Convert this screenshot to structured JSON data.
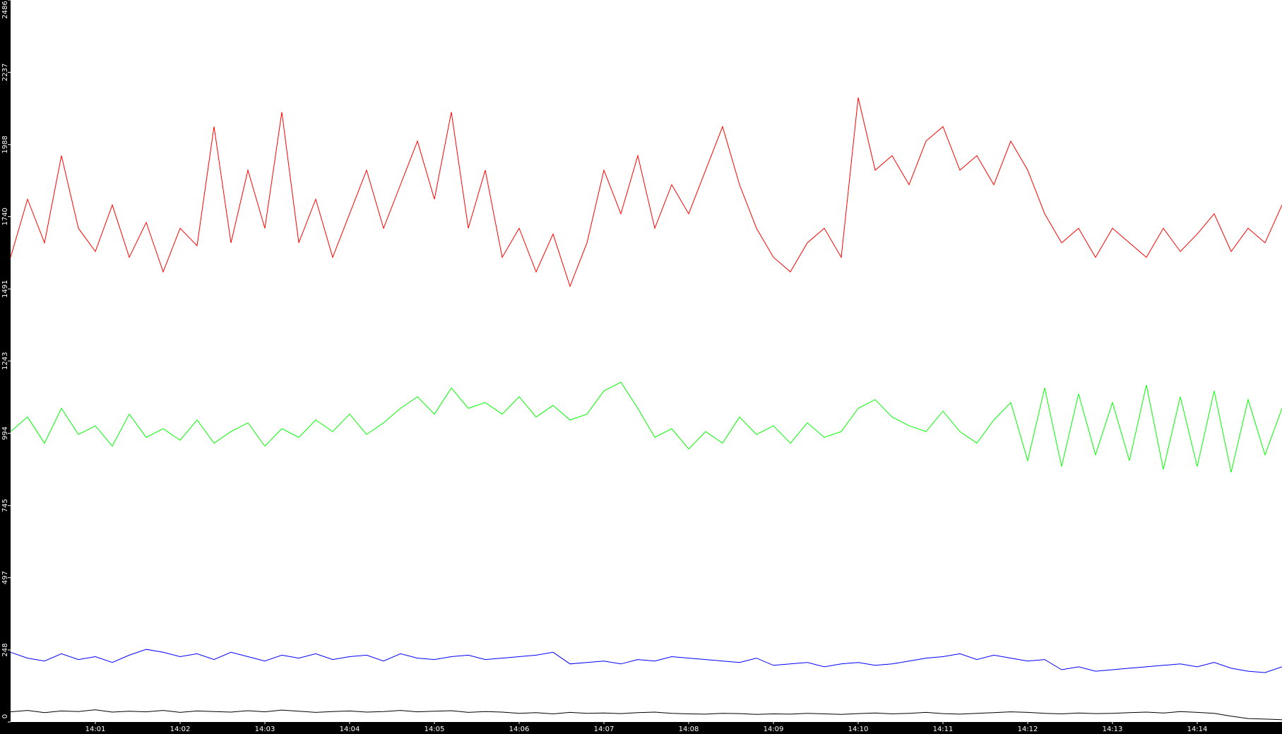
{
  "chart_data": {
    "type": "line",
    "x": [
      0,
      0.2,
      0.4,
      0.6,
      0.8,
      1,
      1.2,
      1.4,
      1.6,
      1.8,
      2,
      2.2,
      2.4,
      2.6,
      2.8,
      3,
      3.2,
      3.4,
      3.6,
      3.8,
      4,
      4.2,
      4.4,
      4.6,
      4.8,
      5,
      5.2,
      5.4,
      5.6,
      5.8,
      6,
      6.2,
      6.4,
      6.6,
      6.8,
      7,
      7.2,
      7.4,
      7.6,
      7.8,
      8,
      8.2,
      8.4,
      8.6,
      8.8,
      9,
      9.2,
      9.4,
      9.6,
      9.8,
      10,
      10.2,
      10.4,
      10.6,
      10.8,
      11,
      11.2,
      11.4,
      11.6,
      11.8,
      12,
      12.2,
      12.4,
      12.6,
      12.8,
      13,
      13.2,
      13.4,
      13.6,
      13.8,
      14,
      14.2,
      14.4,
      14.6,
      14.8,
      15
    ],
    "xlim": [
      0,
      15
    ],
    "xticks": [
      {
        "value": 1,
        "label": "14:01"
      },
      {
        "value": 2,
        "label": "14:02"
      },
      {
        "value": 3,
        "label": "14:03"
      },
      {
        "value": 4,
        "label": "14:04"
      },
      {
        "value": 5,
        "label": "14:05"
      },
      {
        "value": 6,
        "label": "14:06"
      },
      {
        "value": 7,
        "label": "14:07"
      },
      {
        "value": 8,
        "label": "14:08"
      },
      {
        "value": 9,
        "label": "14:09"
      },
      {
        "value": 10,
        "label": "14:10"
      },
      {
        "value": 11,
        "label": "14:11"
      },
      {
        "value": 12,
        "label": "14:12"
      },
      {
        "value": 13,
        "label": "14:13"
      },
      {
        "value": 14,
        "label": "14:14"
      }
    ],
    "ylim": [
      0,
      2486
    ],
    "yticks": [
      0,
      248,
      497,
      745,
      994,
      1243,
      1491,
      1740,
      1988,
      2237,
      2486
    ],
    "series": [
      {
        "color": "#ff0000",
        "values": [
          1600,
          1800,
          1650,
          1950,
          1700,
          1620,
          1780,
          1600,
          1720,
          1550,
          1700,
          1640,
          2050,
          1650,
          1900,
          1700,
          2100,
          1650,
          1800,
          1600,
          1750,
          1900,
          1700,
          1850,
          2000,
          1800,
          2100,
          1700,
          1900,
          1600,
          1700,
          1550,
          1680,
          1500,
          1650,
          1900,
          1750,
          1950,
          1700,
          1850,
          1750,
          1900,
          2050,
          1850,
          1700,
          1600,
          1550,
          1650,
          1700,
          1600,
          2150,
          1900,
          1950,
          1850,
          2000,
          2050,
          1900,
          1950,
          1850,
          2000,
          1900,
          1750,
          1650,
          1700,
          1600,
          1700,
          1650,
          1600,
          1700,
          1620,
          1680,
          1750,
          1620,
          1700,
          1650,
          1780
        ]
      },
      {
        "color": "#00ff00",
        "values": [
          1000,
          1050,
          960,
          1080,
          990,
          1020,
          950,
          1060,
          980,
          1010,
          970,
          1040,
          960,
          1000,
          1030,
          950,
          1010,
          980,
          1040,
          1000,
          1060,
          990,
          1030,
          1080,
          1120,
          1060,
          1150,
          1080,
          1100,
          1060,
          1120,
          1050,
          1090,
          1040,
          1060,
          1140,
          1170,
          1080,
          980,
          1010,
          940,
          1000,
          960,
          1050,
          990,
          1020,
          960,
          1030,
          980,
          1000,
          1080,
          1110,
          1050,
          1020,
          1000,
          1070,
          1000,
          960,
          1040,
          1100,
          900,
          1150,
          880,
          1130,
          920,
          1100,
          900,
          1160,
          870,
          1120,
          880,
          1140,
          860,
          1110,
          920,
          1080
        ]
      },
      {
        "color": "#0000ff",
        "values": [
          240,
          220,
          210,
          235,
          215,
          225,
          205,
          230,
          250,
          240,
          225,
          235,
          215,
          240,
          225,
          210,
          230,
          220,
          235,
          215,
          225,
          230,
          210,
          235,
          220,
          215,
          225,
          230,
          215,
          220,
          225,
          230,
          240,
          200,
          205,
          210,
          200,
          215,
          210,
          225,
          220,
          215,
          210,
          205,
          220,
          195,
          200,
          205,
          190,
          200,
          205,
          195,
          200,
          210,
          220,
          225,
          235,
          215,
          230,
          220,
          210,
          215,
          180,
          190,
          175,
          180,
          185,
          190,
          195,
          200,
          190,
          205,
          185,
          175,
          170,
          190
        ]
      },
      {
        "color": "#000000",
        "values": [
          35,
          40,
          32,
          38,
          36,
          42,
          34,
          37,
          35,
          40,
          33,
          38,
          36,
          34,
          39,
          35,
          41,
          37,
          33,
          36,
          38,
          34,
          36,
          40,
          35,
          37,
          39,
          33,
          36,
          34,
          30,
          32,
          28,
          33,
          30,
          31,
          29,
          32,
          34,
          30,
          28,
          27,
          30,
          29,
          26,
          28,
          27,
          30,
          28,
          26,
          29,
          31,
          28,
          30,
          33,
          29,
          27,
          30,
          32,
          35,
          33,
          30,
          28,
          31,
          29,
          30,
          32,
          34,
          31,
          36,
          33,
          30,
          20,
          12,
          10,
          8
        ]
      }
    ]
  }
}
